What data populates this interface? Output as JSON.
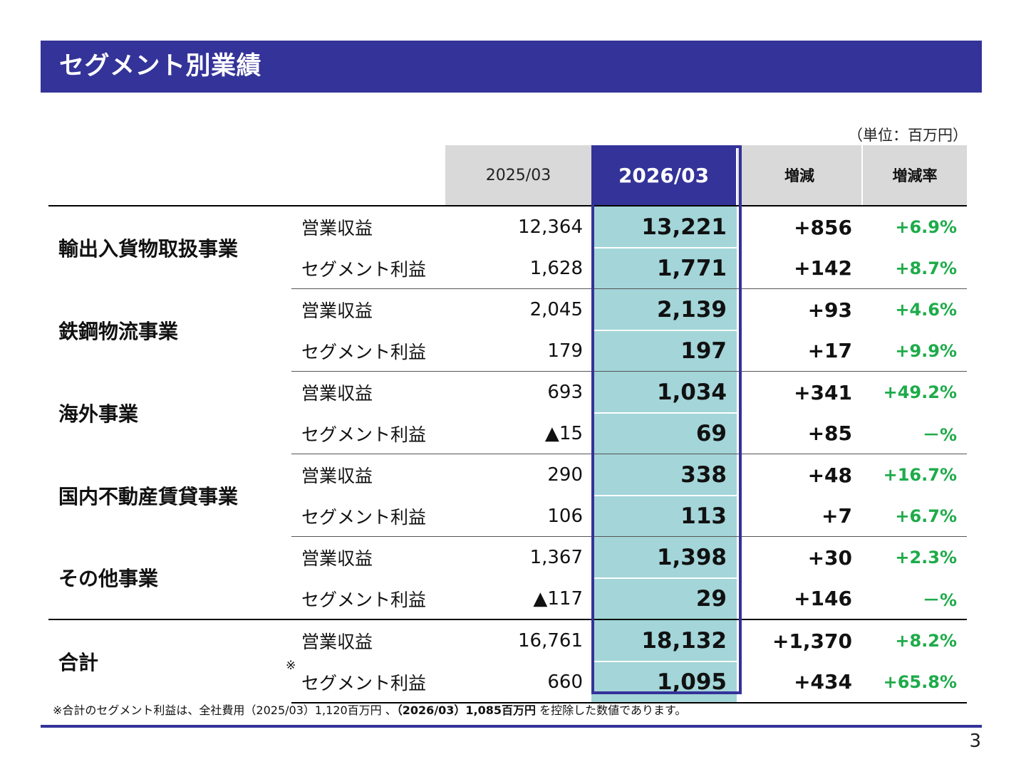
{
  "header": {
    "title": "セグメント別業績"
  },
  "unit_label": "（単位：百万円）",
  "columns": {
    "prev": "2025/03",
    "cur": "2026/03",
    "change": "増減",
    "rate": "増減率"
  },
  "segments": [
    {
      "name": "輸出入貨物取扱事業",
      "rows": [
        {
          "item": "営業収益",
          "prev": "12,364",
          "cur": "13,221",
          "change": "+856",
          "rate": "+6.9%"
        },
        {
          "item": "セグメント利益",
          "prev": "1,628",
          "cur": "1,771",
          "change": "+142",
          "rate": "+8.7%"
        }
      ]
    },
    {
      "name": "鉄鋼物流事業",
      "rows": [
        {
          "item": "営業収益",
          "prev": "2,045",
          "cur": "2,139",
          "change": "+93",
          "rate": "+4.6%"
        },
        {
          "item": "セグメント利益",
          "prev": "179",
          "cur": "197",
          "change": "+17",
          "rate": "+9.9%"
        }
      ]
    },
    {
      "name": "海外事業",
      "rows": [
        {
          "item": "営業収益",
          "prev": "693",
          "cur": "1,034",
          "change": "+341",
          "rate": "+49.2%"
        },
        {
          "item": "セグメント利益",
          "prev": "▲15",
          "cur": "69",
          "change": "+85",
          "rate": "－%"
        }
      ]
    },
    {
      "name": "国内不動産賃貸事業",
      "rows": [
        {
          "item": "営業収益",
          "prev": "290",
          "cur": "338",
          "change": "+48",
          "rate": "+16.7%"
        },
        {
          "item": "セグメント利益",
          "prev": "106",
          "cur": "113",
          "change": "+7",
          "rate": "+6.7%"
        }
      ]
    },
    {
      "name": "その他事業",
      "rows": [
        {
          "item": "営業収益",
          "prev": "1,367",
          "cur": "1,398",
          "change": "+30",
          "rate": "+2.3%"
        },
        {
          "item": "セグメント利益",
          "prev": "▲117",
          "cur": "29",
          "change": "+146",
          "rate": "－%"
        }
      ]
    },
    {
      "name": "合計",
      "rows": [
        {
          "item": "営業収益",
          "prev": "16,761",
          "cur": "18,132",
          "change": "+1,370",
          "rate": "+8.2%"
        },
        {
          "item": "セグメント利益",
          "prev": "660",
          "cur": "1,095",
          "change": "+434",
          "rate": "+65.8%"
        }
      ]
    }
  ],
  "total_note_mark": "※",
  "footnote": {
    "part1": "※合計のセグメント利益は、全社費用（2025/03）1,120百万円 、",
    "bold": "（2026/03）1,085百万円",
    "part2": " を控除した数値であります。"
  },
  "page_number": "3",
  "colors": {
    "brand": "#343399",
    "highlight": "#a3d5d9",
    "positive_rate": "#1eab4a",
    "header_gray": "#d9d9d9"
  }
}
